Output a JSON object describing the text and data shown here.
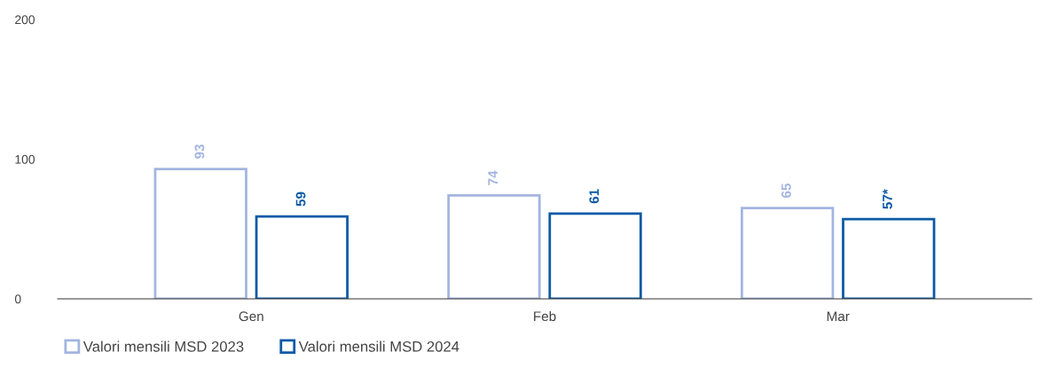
{
  "chart_data": {
    "type": "bar",
    "categories": [
      "Gen",
      "Feb",
      "Mar"
    ],
    "series": [
      {
        "name": "Valori mensili MSD 2023",
        "color": "#a3b5e0",
        "values": [
          93,
          74,
          65
        ],
        "value_labels": [
          "93",
          "74",
          "65"
        ]
      },
      {
        "name": "Valori mensili MSD 2024",
        "color": "#0b5aa6",
        "values": [
          59,
          61,
          57
        ],
        "value_labels": [
          "59",
          "61",
          "57*"
        ]
      }
    ],
    "ylim": [
      0,
      200
    ],
    "yticks": [
      0,
      100,
      200
    ],
    "grid": false,
    "legend": "bottom left"
  }
}
